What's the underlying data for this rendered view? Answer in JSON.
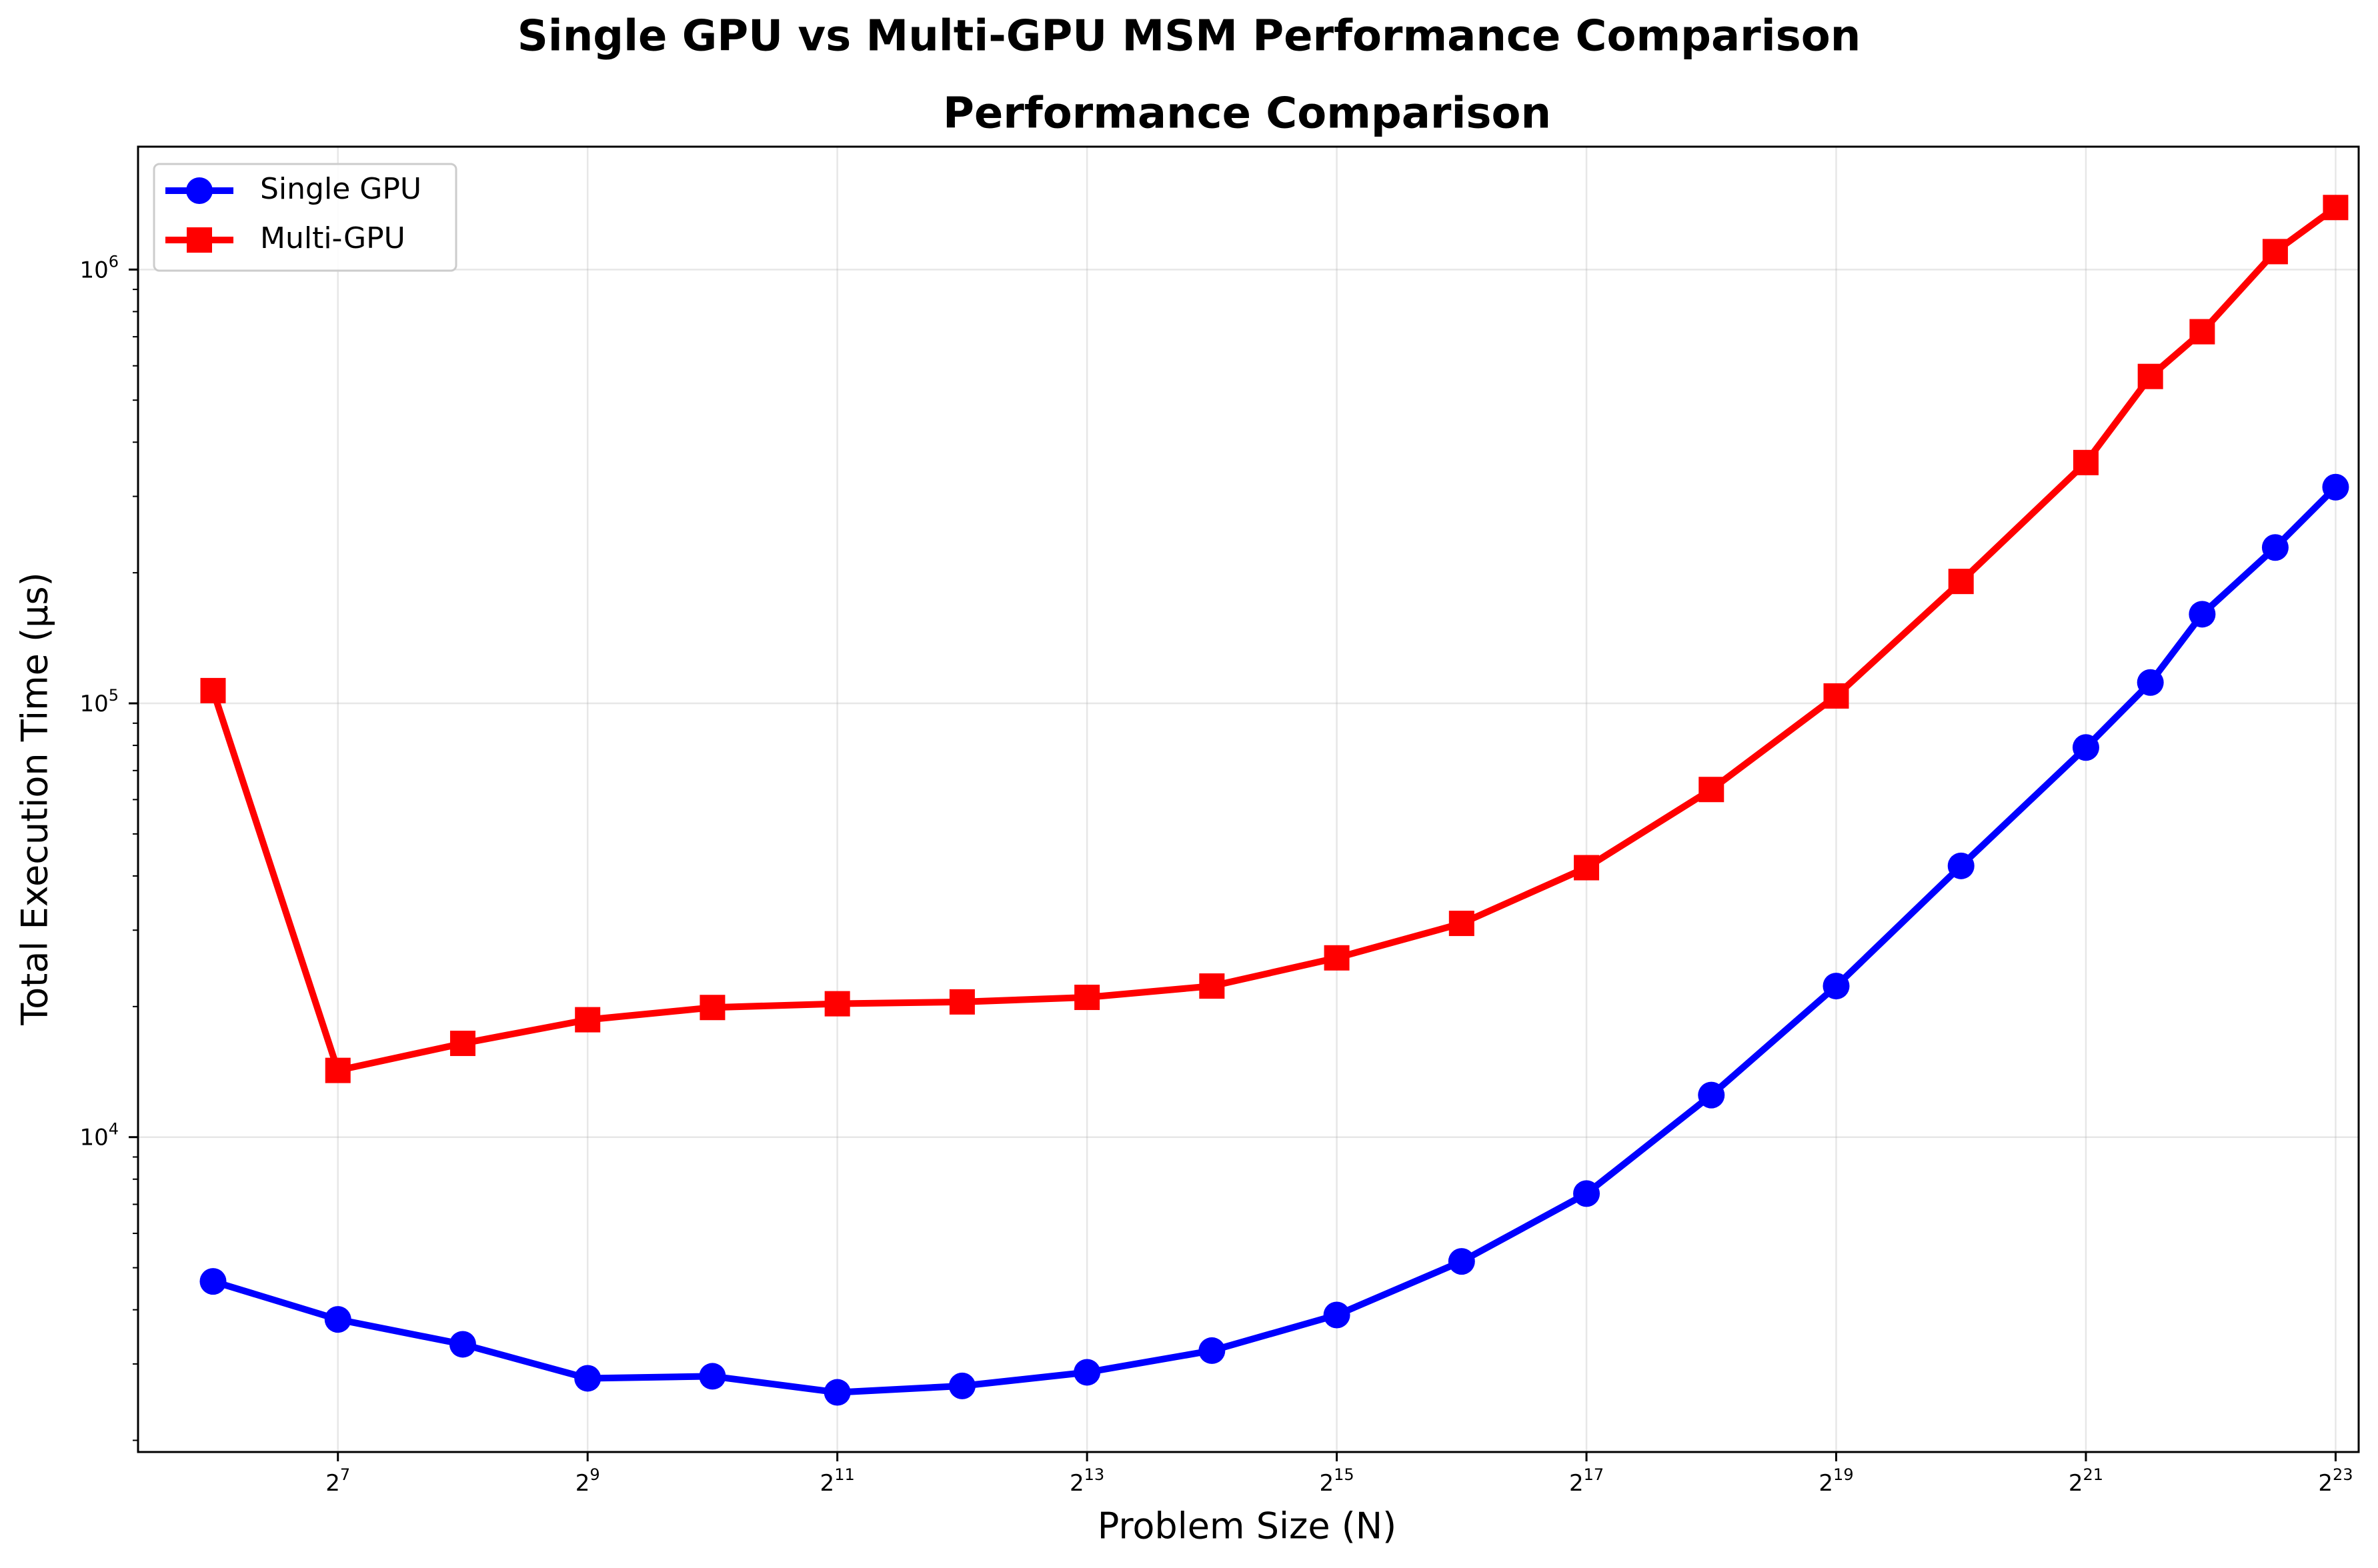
{
  "figure": {
    "suptitle": "Single GPU vs Multi-GPU MSM Performance Comparison"
  },
  "chart_data": {
    "type": "line",
    "title": "Performance Comparison",
    "xlabel": "Problem Size (N)",
    "ylabel": "Total Execution Time (μs)",
    "xscale": "log2",
    "yscale": "log10",
    "xlim": [
      42.2,
      9534000
    ],
    "ylim": [
      1880,
      1920000
    ],
    "grid": true,
    "legend_position": "top-left",
    "x_ticks": [
      {
        "base": "2",
        "exp": "7"
      },
      {
        "base": "2",
        "exp": "9"
      },
      {
        "base": "2",
        "exp": "11"
      },
      {
        "base": "2",
        "exp": "13"
      },
      {
        "base": "2",
        "exp": "15"
      },
      {
        "base": "2",
        "exp": "17"
      },
      {
        "base": "2",
        "exp": "19"
      },
      {
        "base": "2",
        "exp": "21"
      },
      {
        "base": "2",
        "exp": "23"
      }
    ],
    "y_ticks": [
      {
        "base": "10",
        "exp": "4"
      },
      {
        "base": "10",
        "exp": "5"
      },
      {
        "base": "10",
        "exp": "6"
      }
    ],
    "x": [
      64,
      128,
      256,
      512,
      1024,
      2048,
      4096,
      8192,
      16384,
      32768,
      65536,
      131072,
      262144,
      524288,
      1048576,
      2097152,
      3000000,
      4000000,
      6000000,
      8388608
    ],
    "series": [
      {
        "name": "Single GPU",
        "color": "#0000ff",
        "marker": "circle",
        "values": [
          4650,
          3800,
          3330,
          2780,
          2810,
          2580,
          2670,
          2870,
          3220,
          3890,
          5170,
          7410,
          12500,
          22300,
          42200,
          79100,
          111700,
          160500,
          228700,
          315000
        ]
      },
      {
        "name": "Multi-GPU",
        "color": "#ff0000",
        "marker": "square",
        "values": [
          107000,
          14250,
          16450,
          18650,
          19900,
          20300,
          20500,
          21000,
          22300,
          25900,
          31100,
          41800,
          63300,
          104000,
          191000,
          359000,
          567000,
          719000,
          1100000,
          1390000
        ]
      }
    ]
  }
}
